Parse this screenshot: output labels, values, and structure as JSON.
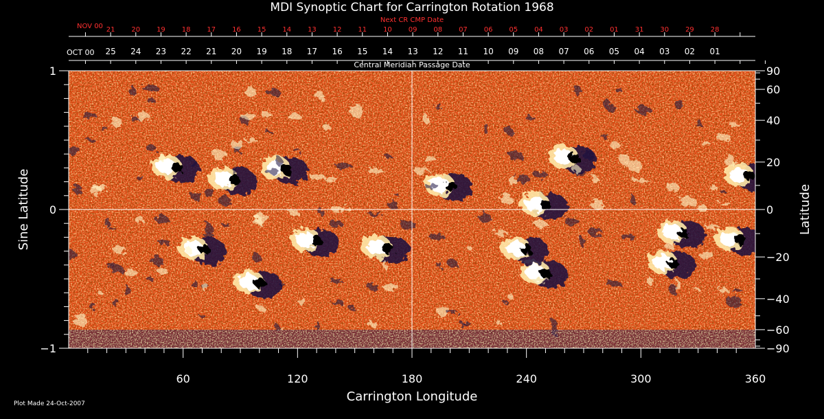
{
  "chart_data": {
    "type": "heatmap",
    "title": "MDI Synoptic Chart for Carrington Rotation 1968",
    "xlabel": "Carrington Longitude",
    "ylabel_left": "Sine Latitude",
    "ylabel_right": "Latitude",
    "xlim": [
      0,
      360
    ],
    "ylim": [
      -1,
      1
    ],
    "x_ticks": [
      60,
      120,
      180,
      240,
      300,
      360
    ],
    "y_left_ticks": [
      {
        "value": 1,
        "label": "1"
      },
      {
        "value": 0,
        "label": "0"
      },
      {
        "value": -1,
        "label": "−1"
      }
    ],
    "y_right_ticks": [
      {
        "deg": 90,
        "label": "90"
      },
      {
        "deg": 60,
        "label": "60"
      },
      {
        "deg": 40,
        "label": "40"
      },
      {
        "deg": 20,
        "label": "20"
      },
      {
        "deg": 0,
        "label": "0"
      },
      {
        "deg": -20,
        "label": "−20"
      },
      {
        "deg": -40,
        "label": "−40"
      },
      {
        "deg": -60,
        "label": "−60"
      },
      {
        "deg": -90,
        "label": "−90"
      }
    ],
    "cmp_axis": {
      "label": "Central Meridian Passage Date",
      "month_label": "OCT 00",
      "days": [
        "25",
        "24",
        "23",
        "22",
        "21",
        "20",
        "19",
        "18",
        "17",
        "16",
        "15",
        "14",
        "13",
        "12",
        "11",
        "10",
        "09",
        "08",
        "07",
        "06",
        "05",
        "04",
        "03",
        "02",
        "01"
      ],
      "first_day_longitude": 22,
      "step_deg": 13.2
    },
    "next_cmp_axis": {
      "label": "Next CR CMP Date",
      "month_label": "NOV 00",
      "days": [
        "21",
        "20",
        "19",
        "18",
        "17",
        "16",
        "15",
        "14",
        "13",
        "12",
        "11",
        "10",
        "09",
        "08",
        "07",
        "06",
        "05",
        "04",
        "03",
        "02",
        "01",
        "31",
        "30",
        "29",
        "28"
      ],
      "first_day_longitude": 22,
      "step_deg": 13.2
    },
    "active_regions": [
      {
        "lon": 55,
        "sinlat": 0.31,
        "polarity": "bipolar"
      },
      {
        "lon": 85,
        "sinlat": 0.22,
        "polarity": "bipolar"
      },
      {
        "lon": 112,
        "sinlat": 0.3,
        "polarity": "bipolar"
      },
      {
        "lon": 69,
        "sinlat": -0.28,
        "polarity": "bipolar"
      },
      {
        "lon": 98,
        "sinlat": -0.52,
        "polarity": "bipolar"
      },
      {
        "lon": 128,
        "sinlat": -0.22,
        "polarity": "bipolar"
      },
      {
        "lon": 165,
        "sinlat": -0.27,
        "polarity": "bipolar"
      },
      {
        "lon": 198,
        "sinlat": 0.18,
        "polarity": "bipolar"
      },
      {
        "lon": 248,
        "sinlat": 0.04,
        "polarity": "bipolar"
      },
      {
        "lon": 263,
        "sinlat": 0.38,
        "polarity": "bipolar"
      },
      {
        "lon": 248,
        "sinlat": -0.45,
        "polarity": "bipolar"
      },
      {
        "lon": 238,
        "sinlat": -0.28,
        "polarity": "bipolar"
      },
      {
        "lon": 315,
        "sinlat": -0.38,
        "polarity": "bipolar"
      },
      {
        "lon": 320,
        "sinlat": -0.16,
        "polarity": "bipolar"
      },
      {
        "lon": 355,
        "sinlat": 0.25,
        "polarity": "bipolar"
      },
      {
        "lon": 350,
        "sinlat": -0.21,
        "polarity": "bipolar"
      }
    ]
  },
  "footer": {
    "plot_made": "Plot Made 24-Oct-2007"
  },
  "colors": {
    "background": "#000000",
    "axis": "#ffffff",
    "next_cmp_red": "#ff3030",
    "field_base": "#e8501a",
    "positive_polarity": "#ffffff",
    "negative_polarity": "#1a1040"
  }
}
